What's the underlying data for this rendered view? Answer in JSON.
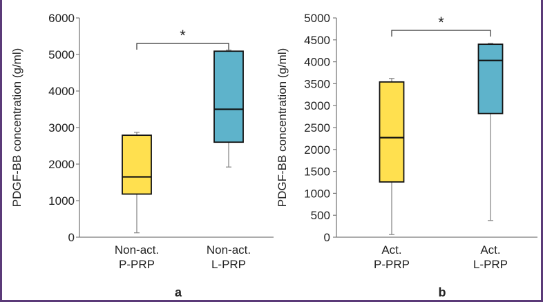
{
  "figure": {
    "border_color": "#5b3a78"
  },
  "chart_data": [
    {
      "type": "boxplot",
      "panel_label": "a",
      "ylabel": "PDGF-BB concentration (g/ml)",
      "ylim": [
        0,
        6000
      ],
      "yticks": [
        0,
        1000,
        2000,
        3000,
        4000,
        5000,
        6000
      ],
      "significance": "*",
      "categories": [
        {
          "label_lines": [
            "Non-act.",
            "P-PRP"
          ],
          "color": "#ffe04f",
          "min": 120,
          "q1": 1180,
          "median": 1650,
          "q3": 2790,
          "max": 2870
        },
        {
          "label_lines": [
            "Non-act.",
            "L-PRP"
          ],
          "color": "#5eb3cb",
          "min": 1920,
          "q1": 2600,
          "median": 3500,
          "q3": 5090,
          "max": 5120
        }
      ]
    },
    {
      "type": "boxplot",
      "panel_label": "b",
      "ylabel": "PDGF-BB concentration (g/ml)",
      "ylim": [
        0,
        5000
      ],
      "yticks": [
        0,
        500,
        1000,
        1500,
        2000,
        2500,
        3000,
        3500,
        4000,
        4500,
        5000
      ],
      "significance": "*",
      "categories": [
        {
          "label_lines": [
            "Act.",
            "P-PRP"
          ],
          "color": "#ffe04f",
          "min": 60,
          "q1": 1260,
          "median": 2270,
          "q3": 3540,
          "max": 3620
        },
        {
          "label_lines": [
            "Act.",
            "L-PRP"
          ],
          "color": "#5eb3cb",
          "min": 380,
          "q1": 2820,
          "median": 4030,
          "q3": 4400,
          "max": 4420
        }
      ]
    }
  ]
}
